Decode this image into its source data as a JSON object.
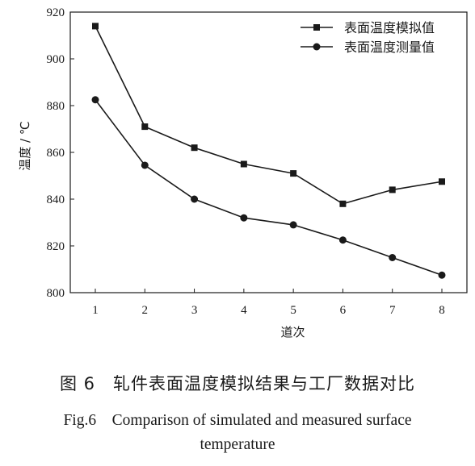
{
  "chart_data": {
    "type": "line",
    "x": [
      1,
      2,
      3,
      4,
      5,
      6,
      7,
      8
    ],
    "series": [
      {
        "name": "表面温度模拟值",
        "marker": "square",
        "values": [
          914,
          871,
          862,
          855,
          851,
          838,
          844,
          847.5
        ]
      },
      {
        "name": "表面温度测量值",
        "marker": "circle",
        "values": [
          882.5,
          854.5,
          840,
          832,
          829,
          822.5,
          815,
          807.5
        ]
      }
    ],
    "xlabel": "道次",
    "ylabel": "温度 / ℃",
    "xlim": [
      1,
      8
    ],
    "ylim": [
      800,
      920
    ],
    "xticks": [
      "1",
      "2",
      "3",
      "4",
      "5",
      "6",
      "7",
      "8"
    ],
    "yticks": [
      "800",
      "820",
      "840",
      "860",
      "880",
      "900",
      "920"
    ],
    "grid": false,
    "legend": "top-right",
    "line_color": "#1a1a1a"
  },
  "caption": {
    "cn": "图 6　轧件表面温度模拟结果与工厂数据对比",
    "en_line1": "Fig.6　Comparison of simulated and measured surface",
    "en_line2": "temperature"
  }
}
